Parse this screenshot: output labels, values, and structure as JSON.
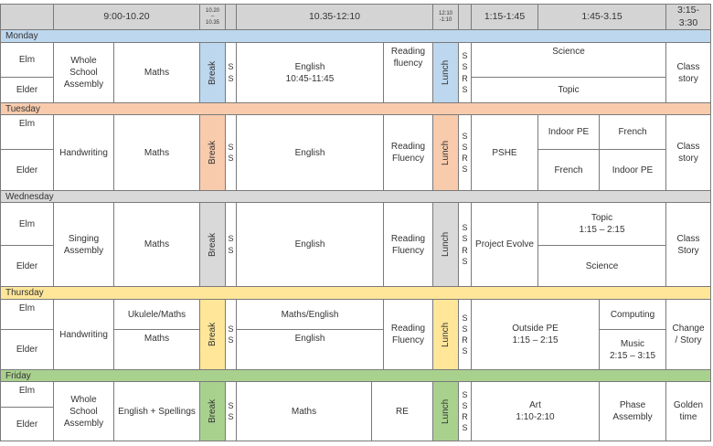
{
  "colors": {
    "header": "#d4d4d4",
    "monday": "#bdd7ee",
    "tuesday": "#f8cbad",
    "wednesday": "#d9d9d9",
    "thursday": "#ffe699",
    "friday": "#a9d18e"
  },
  "header": {
    "time_1": "9:00-10.20",
    "time_2": "10.20\n–\n10.35",
    "time_3": "10.35-12:10",
    "time_4": "12:10\n-1:10",
    "time_5": "1:15-1:45",
    "time_6": "1:45-3.15",
    "time_7": "3:15-\n3:30"
  },
  "days": {
    "monday": "Monday",
    "tuesday": "Tuesday",
    "wednesday": "Wednesday",
    "thursday": "Thursday",
    "friday": "Friday"
  },
  "classes": {
    "elm": "Elm",
    "elder": "Elder"
  },
  "common": {
    "break": "Break",
    "lunch": "Lunch",
    "ss": "S\nS",
    "ssrs": "S\nS\nR\nS"
  },
  "monday": {
    "assembly": "Whole\nSchool\nAssembly",
    "maths": "Maths",
    "english": "English\n10:45-11:45",
    "reading": "Reading\nfluency",
    "science": "Science",
    "topic": "Topic",
    "story": "Class\nstory"
  },
  "tuesday": {
    "handwriting": "Handwriting",
    "maths": "Maths",
    "english": "English",
    "reading": "Reading\nFluency",
    "pshe": "PSHE",
    "indoor_pe_elm": "Indoor PE",
    "french_elm": "French",
    "french_elder": "French",
    "indoor_pe_elder": "Indoor PE",
    "story": "Class\nstory"
  },
  "wednesday": {
    "assembly": "Singing\nAssembly",
    "maths": "Maths",
    "english": "English",
    "reading": "Reading\nFluency",
    "evolve": "Project Evolve",
    "topic": "Topic\n1:15 – 2:15",
    "science": "Science",
    "story": "Class\nStory"
  },
  "thursday": {
    "handwriting": "Handwriting",
    "ukulele": "Ukulele/Maths",
    "maths": "Maths",
    "maths_english": "Maths/English",
    "english": "English",
    "reading": "Reading\nFluency",
    "outdoor_pe": "Outside PE\n1:15 – 2:15",
    "computing": "Computing",
    "music": "Music\n2:15 – 3:15",
    "story": "Change\n/ Story"
  },
  "friday": {
    "assembly": "Whole\nSchool\nAssembly",
    "english": "English + Spellings",
    "maths": "Maths",
    "re": "RE",
    "art": "Art\n1:10-2:10",
    "phase": "Phase\nAssembly",
    "golden": "Golden\ntime"
  }
}
